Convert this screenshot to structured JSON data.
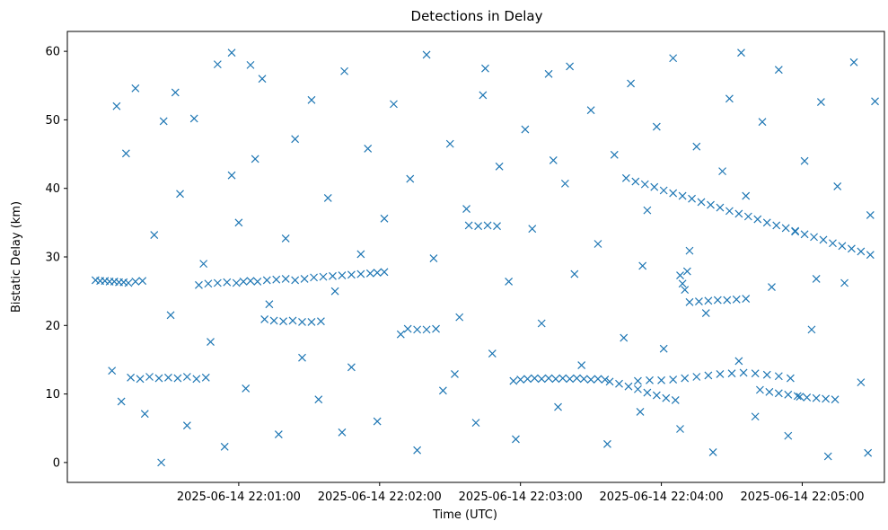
{
  "chart_data": {
    "type": "scatter",
    "title": "Detections in Delay",
    "xlabel": "Time (UTC)",
    "ylabel": "Bistatic Delay (km)",
    "xlim": [
      "2025-06-14 21:59:47",
      "2025-06-14 22:05:35"
    ],
    "ylim": [
      -2.9,
      62.9
    ],
    "x_ticks": [
      "2025-06-14 22:01:00",
      "2025-06-14 22:02:00",
      "2025-06-14 22:03:00",
      "2025-06-14 22:04:00",
      "2025-06-14 22:05:00"
    ],
    "y_ticks": [
      0,
      10,
      20,
      30,
      40,
      50,
      60
    ],
    "marker": "x",
    "grid": false,
    "colors": {
      "series": "#1f77b4"
    },
    "series": [
      {
        "points": [
          [
            "2025-06-14 21:59:59",
            26.6
          ],
          [
            "2025-06-14 22:00:01",
            26.5
          ],
          [
            "2025-06-14 22:00:03",
            26.5
          ],
          [
            "2025-06-14 22:00:05",
            26.4
          ],
          [
            "2025-06-14 22:00:07",
            26.4
          ],
          [
            "2025-06-14 22:00:09",
            26.3
          ],
          [
            "2025-06-14 22:00:11",
            26.3
          ],
          [
            "2025-06-14 22:00:13",
            26.2
          ],
          [
            "2025-06-14 22:00:16",
            26.4
          ],
          [
            "2025-06-14 22:00:19",
            26.5
          ],
          [
            "2025-06-14 22:00:43",
            25.9
          ],
          [
            "2025-06-14 22:00:47",
            26.1
          ],
          [
            "2025-06-14 22:00:51",
            26.2
          ],
          [
            "2025-06-14 22:00:55",
            26.3
          ],
          [
            "2025-06-14 22:00:59",
            26.2
          ],
          [
            "2025-06-14 22:01:02",
            26.4
          ],
          [
            "2025-06-14 22:01:05",
            26.5
          ],
          [
            "2025-06-14 22:01:08",
            26.4
          ],
          [
            "2025-06-14 22:01:12",
            26.6
          ],
          [
            "2025-06-14 22:01:16",
            26.7
          ],
          [
            "2025-06-14 22:01:20",
            26.8
          ],
          [
            "2025-06-14 22:01:24",
            26.6
          ],
          [
            "2025-06-14 22:01:28",
            26.8
          ],
          [
            "2025-06-14 22:01:32",
            27.0
          ],
          [
            "2025-06-14 22:01:36",
            27.1
          ],
          [
            "2025-06-14 22:01:40",
            27.2
          ],
          [
            "2025-06-14 22:01:44",
            27.3
          ],
          [
            "2025-06-14 22:01:48",
            27.4
          ],
          [
            "2025-06-14 22:01:52",
            27.5
          ],
          [
            "2025-06-14 22:01:56",
            27.6
          ],
          [
            "2025-06-14 22:01:59",
            27.7
          ],
          [
            "2025-06-14 22:02:02",
            27.8
          ],
          [
            "2025-06-14 22:01:11",
            20.9
          ],
          [
            "2025-06-14 22:01:15",
            20.7
          ],
          [
            "2025-06-14 22:01:19",
            20.6
          ],
          [
            "2025-06-14 22:01:23",
            20.7
          ],
          [
            "2025-06-14 22:01:27",
            20.5
          ],
          [
            "2025-06-14 22:01:31",
            20.5
          ],
          [
            "2025-06-14 22:01:35",
            20.6
          ],
          [
            "2025-06-14 22:00:14",
            12.4
          ],
          [
            "2025-06-14 22:00:18",
            12.2
          ],
          [
            "2025-06-14 22:00:22",
            12.5
          ],
          [
            "2025-06-14 22:00:26",
            12.3
          ],
          [
            "2025-06-14 22:00:30",
            12.4
          ],
          [
            "2025-06-14 22:00:34",
            12.3
          ],
          [
            "2025-06-14 22:00:38",
            12.5
          ],
          [
            "2025-06-14 22:00:42",
            12.2
          ],
          [
            "2025-06-14 22:00:46",
            12.4
          ],
          [
            "2025-06-14 22:02:12",
            19.5
          ],
          [
            "2025-06-14 22:02:16",
            19.4
          ],
          [
            "2025-06-14 22:02:20",
            19.4
          ],
          [
            "2025-06-14 22:02:24",
            19.5
          ],
          [
            "2025-06-14 22:02:38",
            34.6
          ],
          [
            "2025-06-14 22:02:42",
            34.5
          ],
          [
            "2025-06-14 22:02:46",
            34.6
          ],
          [
            "2025-06-14 22:02:50",
            34.5
          ],
          [
            "2025-06-14 22:02:57",
            11.9
          ],
          [
            "2025-06-14 22:03:00",
            12.1
          ],
          [
            "2025-06-14 22:03:03",
            12.2
          ],
          [
            "2025-06-14 22:03:06",
            12.3
          ],
          [
            "2025-06-14 22:03:09",
            12.2
          ],
          [
            "2025-06-14 22:03:12",
            12.3
          ],
          [
            "2025-06-14 22:03:15",
            12.2
          ],
          [
            "2025-06-14 22:03:18",
            12.3
          ],
          [
            "2025-06-14 22:03:21",
            12.2
          ],
          [
            "2025-06-14 22:03:24",
            12.3
          ],
          [
            "2025-06-14 22:03:27",
            12.2
          ],
          [
            "2025-06-14 22:03:30",
            12.1
          ],
          [
            "2025-06-14 22:03:33",
            12.2
          ],
          [
            "2025-06-14 22:03:36",
            12.1
          ],
          [
            "2025-06-14 22:03:38",
            11.8
          ],
          [
            "2025-06-14 22:03:42",
            11.5
          ],
          [
            "2025-06-14 22:03:46",
            11.1
          ],
          [
            "2025-06-14 22:03:50",
            10.7
          ],
          [
            "2025-06-14 22:03:54",
            10.2
          ],
          [
            "2025-06-14 22:03:58",
            9.8
          ],
          [
            "2025-06-14 22:04:02",
            9.4
          ],
          [
            "2025-06-14 22:04:06",
            9.1
          ],
          [
            "2025-06-14 22:03:50",
            11.9
          ],
          [
            "2025-06-14 22:03:55",
            12.0
          ],
          [
            "2025-06-14 22:04:00",
            12.0
          ],
          [
            "2025-06-14 22:04:05",
            12.1
          ],
          [
            "2025-06-14 22:04:10",
            12.3
          ],
          [
            "2025-06-14 22:04:15",
            12.5
          ],
          [
            "2025-06-14 22:04:20",
            12.7
          ],
          [
            "2025-06-14 22:04:25",
            12.9
          ],
          [
            "2025-06-14 22:04:30",
            13.0
          ],
          [
            "2025-06-14 22:04:35",
            13.1
          ],
          [
            "2025-06-14 22:04:40",
            13.0
          ],
          [
            "2025-06-14 22:04:45",
            12.8
          ],
          [
            "2025-06-14 22:04:50",
            12.6
          ],
          [
            "2025-06-14 22:04:55",
            12.3
          ],
          [
            "2025-06-14 22:04:42",
            10.6
          ],
          [
            "2025-06-14 22:04:46",
            10.3
          ],
          [
            "2025-06-14 22:04:50",
            10.1
          ],
          [
            "2025-06-14 22:04:54",
            9.9
          ],
          [
            "2025-06-14 22:04:58",
            9.7
          ],
          [
            "2025-06-14 22:05:02",
            9.5
          ],
          [
            "2025-06-14 22:05:06",
            9.4
          ],
          [
            "2025-06-14 22:05:10",
            9.3
          ],
          [
            "2025-06-14 22:05:14",
            9.2
          ],
          [
            "2025-06-14 22:03:45",
            41.5
          ],
          [
            "2025-06-14 22:03:49",
            41.0
          ],
          [
            "2025-06-14 22:03:53",
            40.6
          ],
          [
            "2025-06-14 22:03:57",
            40.2
          ],
          [
            "2025-06-14 22:04:01",
            39.7
          ],
          [
            "2025-06-14 22:04:05",
            39.3
          ],
          [
            "2025-06-14 22:04:09",
            38.9
          ],
          [
            "2025-06-14 22:04:13",
            38.5
          ],
          [
            "2025-06-14 22:04:17",
            38.0
          ],
          [
            "2025-06-14 22:04:21",
            37.6
          ],
          [
            "2025-06-14 22:04:25",
            37.2
          ],
          [
            "2025-06-14 22:04:29",
            36.7
          ],
          [
            "2025-06-14 22:04:33",
            36.3
          ],
          [
            "2025-06-14 22:04:37",
            35.9
          ],
          [
            "2025-06-14 22:04:41",
            35.5
          ],
          [
            "2025-06-14 22:04:45",
            35.0
          ],
          [
            "2025-06-14 22:04:49",
            34.6
          ],
          [
            "2025-06-14 22:04:53",
            34.2
          ],
          [
            "2025-06-14 22:04:57",
            33.7
          ],
          [
            "2025-06-14 22:05:01",
            33.3
          ],
          [
            "2025-06-14 22:05:05",
            32.9
          ],
          [
            "2025-06-14 22:05:09",
            32.5
          ],
          [
            "2025-06-14 22:05:13",
            32.0
          ],
          [
            "2025-06-14 22:05:17",
            31.6
          ],
          [
            "2025-06-14 22:05:21",
            31.2
          ],
          [
            "2025-06-14 22:05:25",
            30.8
          ],
          [
            "2025-06-14 22:05:29",
            30.3
          ],
          [
            "2025-06-14 22:04:12",
            23.4
          ],
          [
            "2025-06-14 22:04:16",
            23.5
          ],
          [
            "2025-06-14 22:04:20",
            23.6
          ],
          [
            "2025-06-14 22:04:24",
            23.7
          ],
          [
            "2025-06-14 22:04:28",
            23.7
          ],
          [
            "2025-06-14 22:04:32",
            23.8
          ],
          [
            "2025-06-14 22:04:36",
            23.9
          ],
          [
            "2025-06-14 22:04:08",
            27.3
          ],
          [
            "2025-06-14 22:04:09",
            26.1
          ],
          [
            "2025-06-14 22:04:10",
            25.2
          ],
          [
            "2025-06-14 22:04:11",
            27.9
          ],
          [
            "2025-06-14 22:00:06",
            13.4
          ],
          [
            "2025-06-14 22:00:10",
            8.9
          ],
          [
            "2025-06-14 22:00:12",
            45.1
          ],
          [
            "2025-06-14 22:00:16",
            54.6
          ],
          [
            "2025-06-14 22:00:20",
            7.1
          ],
          [
            "2025-06-14 22:00:24",
            33.2
          ],
          [
            "2025-06-14 22:00:28",
            49.8
          ],
          [
            "2025-06-14 22:00:31",
            21.5
          ],
          [
            "2025-06-14 22:00:35",
            39.2
          ],
          [
            "2025-06-14 22:00:38",
            5.4
          ],
          [
            "2025-06-14 22:00:41",
            50.2
          ],
          [
            "2025-06-14 22:00:45",
            29.0
          ],
          [
            "2025-06-14 22:00:48",
            17.6
          ],
          [
            "2025-06-14 22:00:51",
            58.1
          ],
          [
            "2025-06-14 22:00:54",
            2.3
          ],
          [
            "2025-06-14 22:00:57",
            41.9
          ],
          [
            "2025-06-14 22:01:00",
            35.0
          ],
          [
            "2025-06-14 22:01:03",
            10.8
          ],
          [
            "2025-06-14 22:01:07",
            44.3
          ],
          [
            "2025-06-14 22:01:10",
            56.0
          ],
          [
            "2025-06-14 22:01:13",
            23.1
          ],
          [
            "2025-06-14 22:01:17",
            4.1
          ],
          [
            "2025-06-14 22:01:20",
            32.7
          ],
          [
            "2025-06-14 22:01:24",
            47.2
          ],
          [
            "2025-06-14 22:01:27",
            15.3
          ],
          [
            "2025-06-14 22:01:31",
            52.9
          ],
          [
            "2025-06-14 22:01:34",
            9.2
          ],
          [
            "2025-06-14 22:01:38",
            38.6
          ],
          [
            "2025-06-14 22:01:41",
            25.0
          ],
          [
            "2025-06-14 22:01:45",
            57.1
          ],
          [
            "2025-06-14 22:01:48",
            13.9
          ],
          [
            "2025-06-14 22:01:52",
            30.4
          ],
          [
            "2025-06-14 22:01:55",
            45.8
          ],
          [
            "2025-06-14 22:01:59",
            6.0
          ],
          [
            "2025-06-14 22:02:02",
            35.6
          ],
          [
            "2025-06-14 22:02:06",
            52.3
          ],
          [
            "2025-06-14 22:02:09",
            18.7
          ],
          [
            "2025-06-14 22:02:13",
            41.4
          ],
          [
            "2025-06-14 22:02:16",
            1.8
          ],
          [
            "2025-06-14 22:02:20",
            59.5
          ],
          [
            "2025-06-14 22:02:23",
            29.8
          ],
          [
            "2025-06-14 22:02:27",
            10.5
          ],
          [
            "2025-06-14 22:02:30",
            46.5
          ],
          [
            "2025-06-14 22:02:34",
            21.2
          ],
          [
            "2025-06-14 22:02:37",
            37.0
          ],
          [
            "2025-06-14 22:02:41",
            5.8
          ],
          [
            "2025-06-14 22:02:44",
            53.6
          ],
          [
            "2025-06-14 22:02:48",
            15.9
          ],
          [
            "2025-06-14 22:02:51",
            43.2
          ],
          [
            "2025-06-14 22:02:55",
            26.4
          ],
          [
            "2025-06-14 22:02:58",
            3.4
          ],
          [
            "2025-06-14 22:03:02",
            48.6
          ],
          [
            "2025-06-14 22:03:05",
            34.1
          ],
          [
            "2025-06-14 22:03:09",
            20.3
          ],
          [
            "2025-06-14 22:03:12",
            56.7
          ],
          [
            "2025-06-14 22:03:16",
            8.1
          ],
          [
            "2025-06-14 22:03:19",
            40.7
          ],
          [
            "2025-06-14 22:03:23",
            27.5
          ],
          [
            "2025-06-14 22:03:26",
            14.2
          ],
          [
            "2025-06-14 22:03:30",
            51.4
          ],
          [
            "2025-06-14 22:03:33",
            31.9
          ],
          [
            "2025-06-14 22:03:37",
            2.7
          ],
          [
            "2025-06-14 22:03:40",
            44.9
          ],
          [
            "2025-06-14 22:03:44",
            18.2
          ],
          [
            "2025-06-14 22:03:47",
            55.3
          ],
          [
            "2025-06-14 22:03:51",
            7.4
          ],
          [
            "2025-06-14 22:03:54",
            36.8
          ],
          [
            "2025-06-14 22:03:58",
            49.0
          ],
          [
            "2025-06-14 22:04:01",
            16.6
          ],
          [
            "2025-06-14 22:04:05",
            59.0
          ],
          [
            "2025-06-14 22:04:08",
            4.9
          ],
          [
            "2025-06-14 22:04:12",
            30.9
          ],
          [
            "2025-06-14 22:04:15",
            46.1
          ],
          [
            "2025-06-14 22:04:19",
            21.8
          ],
          [
            "2025-06-14 22:04:22",
            1.5
          ],
          [
            "2025-06-14 22:04:26",
            42.5
          ],
          [
            "2025-06-14 22:04:29",
            53.1
          ],
          [
            "2025-06-14 22:04:33",
            14.8
          ],
          [
            "2025-06-14 22:04:36",
            38.9
          ],
          [
            "2025-06-14 22:04:40",
            6.7
          ],
          [
            "2025-06-14 22:04:43",
            49.7
          ],
          [
            "2025-06-14 22:04:47",
            25.6
          ],
          [
            "2025-06-14 22:04:50",
            57.3
          ],
          [
            "2025-06-14 22:04:54",
            3.9
          ],
          [
            "2025-06-14 22:04:57",
            33.8
          ],
          [
            "2025-06-14 22:05:01",
            44.0
          ],
          [
            "2025-06-14 22:05:04",
            19.4
          ],
          [
            "2025-06-14 22:05:08",
            52.6
          ],
          [
            "2025-06-14 22:05:11",
            0.9
          ],
          [
            "2025-06-14 22:05:15",
            40.3
          ],
          [
            "2025-06-14 22:05:18",
            26.2
          ],
          [
            "2025-06-14 22:05:22",
            58.4
          ],
          [
            "2025-06-14 22:05:25",
            11.7
          ],
          [
            "2025-06-14 22:05:29",
            36.1
          ],
          [
            "2025-06-14 22:05:31",
            52.7
          ],
          [
            "2025-06-14 22:05:28",
            1.4
          ],
          [
            "2025-06-14 22:00:33",
            54.0
          ],
          [
            "2025-06-14 22:00:57",
            59.8
          ],
          [
            "2025-06-14 22:01:44",
            4.4
          ],
          [
            "2025-06-14 22:02:32",
            12.9
          ],
          [
            "2025-06-14 22:03:14",
            44.1
          ],
          [
            "2025-06-14 22:03:52",
            28.7
          ],
          [
            "2025-06-14 22:04:34",
            59.8
          ],
          [
            "2025-06-14 22:05:06",
            26.8
          ],
          [
            "2025-06-14 22:00:08",
            52.0
          ],
          [
            "2025-06-14 22:00:27",
            0.0
          ],
          [
            "2025-06-14 22:01:05",
            58.0
          ],
          [
            "2025-06-14 22:02:45",
            57.5
          ],
          [
            "2025-06-14 22:03:21",
            57.8
          ],
          [
            "2025-06-14 22:04:59",
            9.6
          ]
        ]
      }
    ]
  }
}
